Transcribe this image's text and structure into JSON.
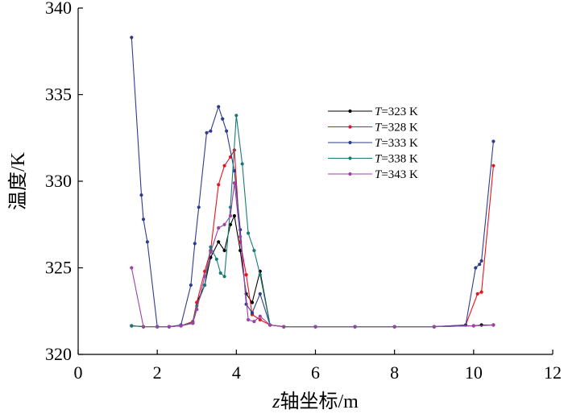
{
  "chart_data": {
    "type": "line",
    "xlabel": "z轴坐标/m",
    "ylabel": "温度/K",
    "xlim": [
      0,
      12
    ],
    "ylim": [
      320,
      340
    ],
    "xticks": [
      0,
      2,
      4,
      6,
      8,
      10,
      12
    ],
    "yticks": [
      320,
      325,
      330,
      335,
      340
    ],
    "grid": false,
    "legend_position": "right",
    "series": [
      {
        "name": "T=323 K",
        "color": "#000000",
        "x": [
          1.35,
          1.65,
          2.0,
          2.3,
          2.6,
          2.9,
          3.0,
          3.2,
          3.35,
          3.55,
          3.7,
          3.85,
          3.95,
          4.1,
          4.25,
          4.4,
          4.6,
          4.85,
          5.2,
          6.0,
          7.0,
          8.0,
          9.0,
          10.0,
          10.2,
          10.5
        ],
        "values": [
          321.65,
          321.6,
          321.6,
          321.6,
          321.65,
          321.8,
          323.0,
          324.0,
          325.6,
          326.5,
          326.0,
          327.5,
          328.0,
          326.0,
          323.5,
          323.0,
          324.8,
          321.7,
          321.6,
          321.6,
          321.6,
          321.6,
          321.6,
          321.65,
          321.7,
          321.7
        ]
      },
      {
        "name": "T=328 K",
        "color": "#e8141c",
        "x": [
          1.35,
          1.65,
          2.0,
          2.3,
          2.6,
          2.9,
          3.0,
          3.2,
          3.35,
          3.55,
          3.7,
          3.85,
          3.95,
          4.1,
          4.25,
          4.4,
          4.6,
          4.85,
          5.2,
          6.0,
          7.0,
          8.0,
          9.0,
          9.8,
          10.1,
          10.2,
          10.5
        ],
        "values": [
          321.65,
          321.6,
          321.6,
          321.6,
          321.65,
          321.9,
          323.0,
          324.8,
          326.0,
          329.8,
          330.9,
          331.4,
          331.8,
          326.5,
          324.6,
          322.3,
          322.0,
          321.7,
          321.6,
          321.6,
          321.6,
          321.6,
          321.6,
          321.7,
          323.5,
          323.6,
          330.9
        ]
      },
      {
        "name": "T=333 K",
        "color": "#2e3b8f",
        "x": [
          1.35,
          1.6,
          1.65,
          1.75,
          2.0,
          2.3,
          2.6,
          2.85,
          2.95,
          3.05,
          3.25,
          3.35,
          3.55,
          3.65,
          3.75,
          3.95,
          4.1,
          4.25,
          4.4,
          4.6,
          4.85,
          5.2,
          6.0,
          7.0,
          8.0,
          9.0,
          9.8,
          10.05,
          10.15,
          10.2,
          10.5
        ],
        "values": [
          338.3,
          329.2,
          327.8,
          326.5,
          321.6,
          321.6,
          321.7,
          324.0,
          326.4,
          328.5,
          332.8,
          332.9,
          334.3,
          333.6,
          332.9,
          330.6,
          327.2,
          322.9,
          322.4,
          323.5,
          321.7,
          321.6,
          321.6,
          321.6,
          321.6,
          321.6,
          321.7,
          325.0,
          325.2,
          325.4,
          332.3
        ]
      },
      {
        "name": "T=338 K",
        "color": "#1a7a73",
        "x": [
          1.35,
          1.65,
          2.0,
          2.3,
          2.6,
          2.9,
          3.0,
          3.2,
          3.35,
          3.5,
          3.6,
          3.7,
          3.85,
          4.0,
          4.15,
          4.3,
          4.45,
          4.6,
          4.85,
          5.2,
          6.0,
          7.0,
          8.0,
          9.0,
          10.0,
          10.5
        ],
        "values": [
          321.65,
          321.6,
          321.6,
          321.6,
          321.65,
          321.85,
          322.8,
          324.0,
          326.2,
          325.5,
          324.7,
          324.5,
          328.5,
          333.8,
          331.0,
          327.0,
          326.0,
          324.6,
          321.7,
          321.6,
          321.6,
          321.6,
          321.6,
          321.6,
          321.65,
          321.7
        ]
      },
      {
        "name": "T=343 K",
        "color": "#a040a8",
        "x": [
          1.35,
          1.65,
          2.0,
          2.3,
          2.6,
          2.9,
          3.0,
          3.2,
          3.35,
          3.55,
          3.7,
          3.85,
          3.95,
          4.1,
          4.3,
          4.45,
          4.6,
          4.85,
          5.2,
          6.0,
          7.0,
          8.0,
          9.0,
          10.0,
          10.5
        ],
        "values": [
          325.0,
          321.6,
          321.6,
          321.6,
          321.65,
          321.8,
          322.6,
          324.5,
          325.9,
          327.3,
          327.5,
          328.0,
          329.9,
          326.8,
          322.0,
          321.9,
          322.2,
          321.7,
          321.6,
          321.6,
          321.6,
          321.6,
          321.6,
          321.65,
          321.7
        ]
      }
    ]
  }
}
